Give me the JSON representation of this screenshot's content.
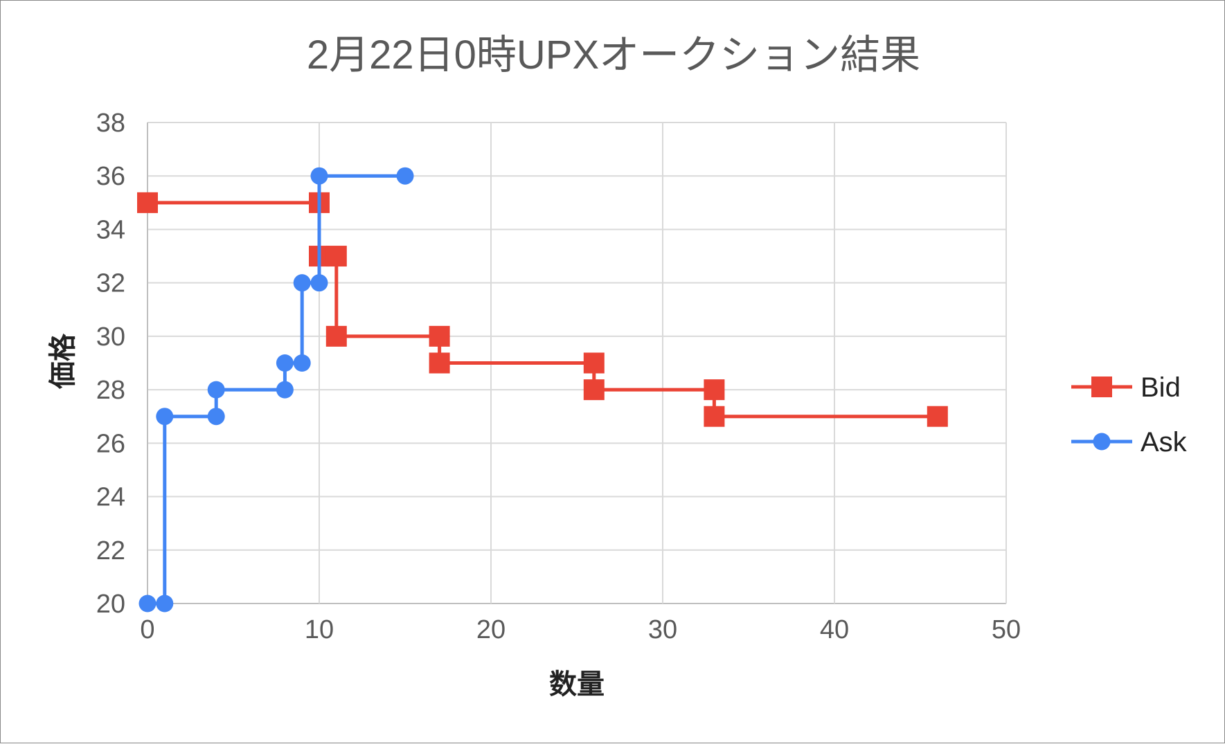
{
  "chart_data": {
    "type": "line",
    "title": "2月22日0時UPXオークション結果",
    "xlabel": "数量",
    "ylabel": "価格",
    "xlim": [
      0,
      50
    ],
    "ylim": [
      20,
      38
    ],
    "xticks": [
      0,
      10,
      20,
      30,
      40,
      50
    ],
    "yticks": [
      20,
      22,
      24,
      26,
      28,
      30,
      32,
      34,
      36,
      38
    ],
    "grid": true,
    "legend_position": "right",
    "series": [
      {
        "name": "Bid",
        "color": "#ea4335",
        "marker": "square",
        "points": [
          [
            0,
            35
          ],
          [
            10,
            35
          ],
          [
            10,
            33
          ],
          [
            11,
            33
          ],
          [
            11,
            30
          ],
          [
            17,
            30
          ],
          [
            17,
            29
          ],
          [
            26,
            29
          ],
          [
            26,
            28
          ],
          [
            33,
            28
          ],
          [
            33,
            27
          ],
          [
            46,
            27
          ]
        ]
      },
      {
        "name": "Ask",
        "color": "#4285f4",
        "marker": "circle",
        "points": [
          [
            0,
            20
          ],
          [
            1,
            20
          ],
          [
            1,
            27
          ],
          [
            4,
            27
          ],
          [
            4,
            28
          ],
          [
            8,
            28
          ],
          [
            8,
            29
          ],
          [
            9,
            29
          ],
          [
            9,
            32
          ],
          [
            10,
            32
          ],
          [
            10,
            36
          ],
          [
            15,
            36
          ]
        ]
      }
    ]
  }
}
